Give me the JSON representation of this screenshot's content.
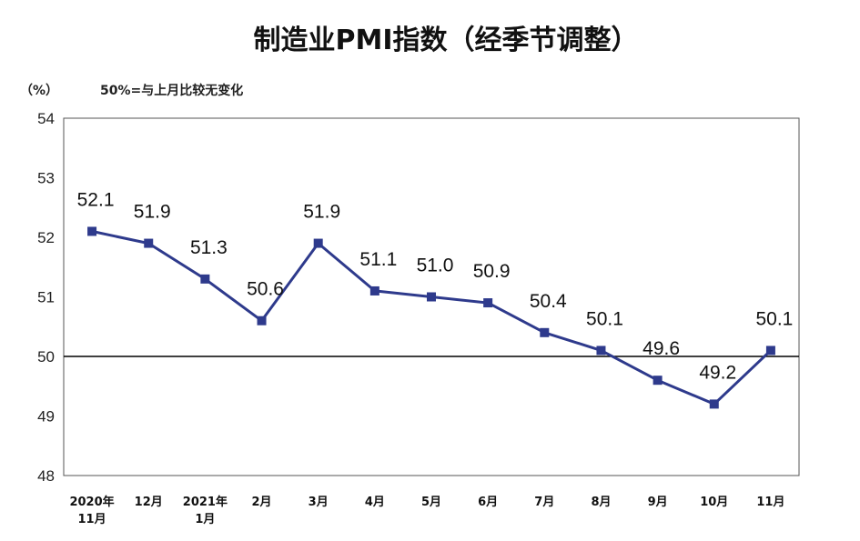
{
  "chart_data": {
    "type": "line",
    "title": "制造业PMI指数（经季节调整）",
    "ylabel": "（%）",
    "note": "50%=与上月比较无变化",
    "ylim": [
      48,
      54
    ],
    "yticks": [
      "54",
      "53",
      "52",
      "51",
      "50",
      "49",
      "48"
    ],
    "reference_line": 50,
    "categories": [
      "2020年\n11月",
      "12月",
      "2021年\n1月",
      "2月",
      "3月",
      "4月",
      "5月",
      "6月",
      "7月",
      "8月",
      "9月",
      "10月",
      "11月"
    ],
    "series": [
      {
        "values": [
          52.1,
          51.9,
          51.3,
          50.6,
          51.9,
          51.1,
          51.0,
          50.9,
          50.4,
          50.1,
          49.6,
          49.2,
          50.1
        ],
        "labels": [
          "52.1",
          "51.9",
          "51.3",
          "50.6",
          "51.9",
          "51.1",
          "51.0",
          "50.9",
          "50.4",
          "50.1",
          "49.6",
          "49.2",
          "50.1"
        ],
        "color": "#2e3a8c"
      }
    ],
    "grid": false,
    "legend": "none",
    "colors": {
      "line": "#2e3a8c",
      "axis": "#000000"
    }
  }
}
